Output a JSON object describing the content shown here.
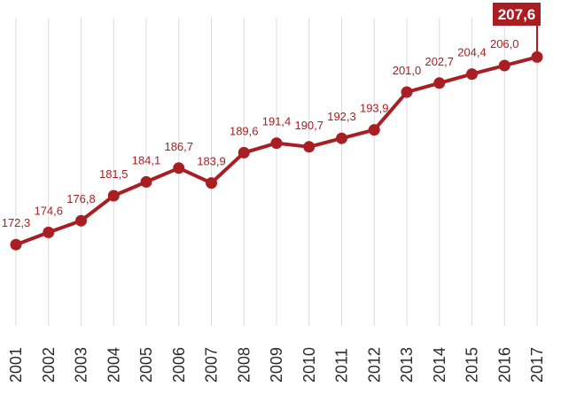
{
  "chart_data": {
    "type": "line",
    "categories": [
      "2001",
      "2002",
      "2003",
      "2004",
      "2005",
      "2006",
      "2007",
      "2008",
      "2009",
      "2010",
      "2011",
      "2012",
      "2013",
      "2014",
      "2015",
      "2016",
      "2017"
    ],
    "values": [
      172.3,
      174.6,
      176.8,
      181.5,
      184.1,
      186.7,
      183.9,
      189.6,
      191.4,
      190.7,
      192.3,
      193.9,
      201.0,
      202.7,
      204.4,
      206.0,
      207.6
    ],
    "data_labels": [
      "172,3",
      "174,6",
      "176,8",
      "181,5",
      "184,1",
      "186,7",
      "183,9",
      "189,6",
      "191,4",
      "190,7",
      "192,3",
      "193,9",
      "201,0",
      "202,7",
      "204,4",
      "206,0",
      "207,6"
    ],
    "highlight_index": 16,
    "title": "",
    "xlabel": "",
    "ylabel": "",
    "ylim": [
      152,
      212
    ],
    "grid": "vertical",
    "color": "#a81e22",
    "grid_color": "#dcdcdc",
    "tick_color": "#2b2b2b"
  }
}
